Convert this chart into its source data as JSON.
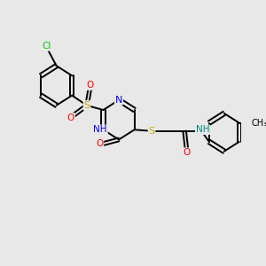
{
  "background_color": "#e8e8e8",
  "bond_color": "#000000",
  "atom_colors": {
    "C": "#000000",
    "N": "#0000ff",
    "O": "#ff0000",
    "S": "#ccaa00",
    "Cl": "#00cc00",
    "H": "#008888"
  },
  "figsize": [
    3.0,
    3.0
  ],
  "dpi": 100,
  "xlim": [
    0,
    10
  ],
  "ylim": [
    0,
    10
  ]
}
